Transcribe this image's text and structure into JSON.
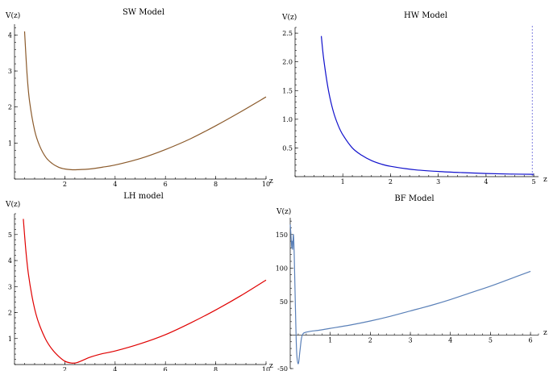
{
  "charts": [
    {
      "id": "sw",
      "type": "line",
      "title": "SW Model",
      "ylabel": "V(z)",
      "xlabel": "z",
      "color": "#8B5A2B",
      "xlim": [
        0,
        10
      ],
      "ylim": [
        0,
        4.3
      ],
      "xticks": [
        2,
        4,
        6,
        8,
        10
      ],
      "xtick_labels": [
        "2",
        "4",
        "6",
        "8",
        "10"
      ],
      "yticks": [
        1,
        2,
        3,
        4
      ],
      "ytick_labels": [
        "1",
        "2",
        "3",
        "4"
      ],
      "series": [
        {
          "x": [
            0.4,
            0.5,
            0.6,
            0.8,
            1.0,
            1.25,
            1.5,
            1.75,
            2.0,
            2.25,
            2.5,
            3.0,
            3.5,
            4.0,
            5.0,
            6.0,
            7.0,
            8.0,
            9.0,
            10.0
          ],
          "y": [
            4.1,
            2.9,
            2.15,
            1.35,
            0.92,
            0.6,
            0.43,
            0.33,
            0.28,
            0.26,
            0.26,
            0.28,
            0.33,
            0.39,
            0.57,
            0.82,
            1.12,
            1.48,
            1.87,
            2.28
          ]
        }
      ]
    },
    {
      "id": "hw",
      "type": "line",
      "title": "HW Model",
      "ylabel": "V(z)",
      "xlabel": "z",
      "color": "#1010CC",
      "xlim": [
        0,
        5.1
      ],
      "ylim": [
        0,
        2.6
      ],
      "xticks": [
        1,
        2,
        3,
        4,
        5
      ],
      "xtick_labels": [
        "1",
        "2",
        "3",
        "4",
        "5"
      ],
      "yticks": [
        0.5,
        1.0,
        1.5,
        2.0,
        2.5
      ],
      "ytick_labels": [
        "0.5",
        "1.0",
        "1.5",
        "2.0",
        "2.5"
      ],
      "vline_x": 4.97,
      "vline_color": "#8080E0",
      "series": [
        {
          "x": [
            0.55,
            0.6,
            0.7,
            0.8,
            0.9,
            1.0,
            1.2,
            1.4,
            1.6,
            1.8,
            2.0,
            2.5,
            3.0,
            3.5,
            4.0,
            4.5,
            5.0
          ],
          "y": [
            2.45,
            2.05,
            1.5,
            1.14,
            0.9,
            0.73,
            0.5,
            0.37,
            0.28,
            0.22,
            0.18,
            0.12,
            0.09,
            0.07,
            0.055,
            0.045,
            0.04
          ]
        }
      ]
    },
    {
      "id": "lh",
      "type": "line",
      "title": "LH model",
      "ylabel": "V(z)",
      "xlabel": "z",
      "color": "#E00000",
      "xlim": [
        0,
        10
      ],
      "ylim": [
        0,
        5.8
      ],
      "xticks": [
        2,
        4,
        6,
        8,
        10
      ],
      "xtick_labels": [
        "2",
        "4",
        "6",
        "8",
        "10"
      ],
      "yticks": [
        1,
        2,
        3,
        4,
        5
      ],
      "ytick_labels": [
        "1",
        "2",
        "3",
        "4",
        "5"
      ],
      "series": [
        {
          "x": [
            0.35,
            0.45,
            0.55,
            0.7,
            0.85,
            1.0,
            1.25,
            1.5,
            1.75,
            2.0,
            2.25,
            2.5,
            3.0,
            3.5,
            4.0,
            5.0,
            6.0,
            7.0,
            8.0,
            9.0,
            10.0
          ],
          "y": [
            5.6,
            4.4,
            3.5,
            2.6,
            1.95,
            1.5,
            0.95,
            0.58,
            0.32,
            0.13,
            0.06,
            0.08,
            0.28,
            0.42,
            0.52,
            0.8,
            1.15,
            1.6,
            2.1,
            2.65,
            3.25
          ]
        }
      ]
    },
    {
      "id": "bf",
      "type": "line",
      "title": "BF Model",
      "ylabel": "V(z)",
      "xlabel": "z",
      "color": "#5A80B8",
      "xlim": [
        0,
        6.2
      ],
      "ylim": [
        -50,
        175
      ],
      "xticks": [
        1,
        2,
        3,
        4,
        5,
        6
      ],
      "xtick_labels": [
        "1",
        "2",
        "3",
        "4",
        "5",
        "6"
      ],
      "yticks": [
        -50,
        50,
        100,
        150
      ],
      "ytick_labels": [
        "-50",
        "50",
        "100",
        "150"
      ],
      "series": [
        {
          "x": [
            0.0,
            0.02,
            0.04,
            0.05,
            0.06,
            0.08,
            0.1,
            0.13,
            0.16,
            0.2,
            0.24,
            0.28,
            0.32,
            0.38,
            0.45,
            0.55,
            0.7,
            1.0,
            1.5,
            2.0,
            2.5,
            3.0,
            3.5,
            4.0,
            4.5,
            5.0,
            5.5,
            6.0
          ],
          "y": [
            165,
            148,
            130,
            140,
            128,
            150,
            120,
            40,
            -25,
            -43,
            -25,
            -5,
            2,
            4,
            5,
            6,
            7,
            10,
            15,
            21,
            28,
            36,
            44,
            53,
            63,
            73,
            84,
            95
          ]
        }
      ]
    }
  ]
}
